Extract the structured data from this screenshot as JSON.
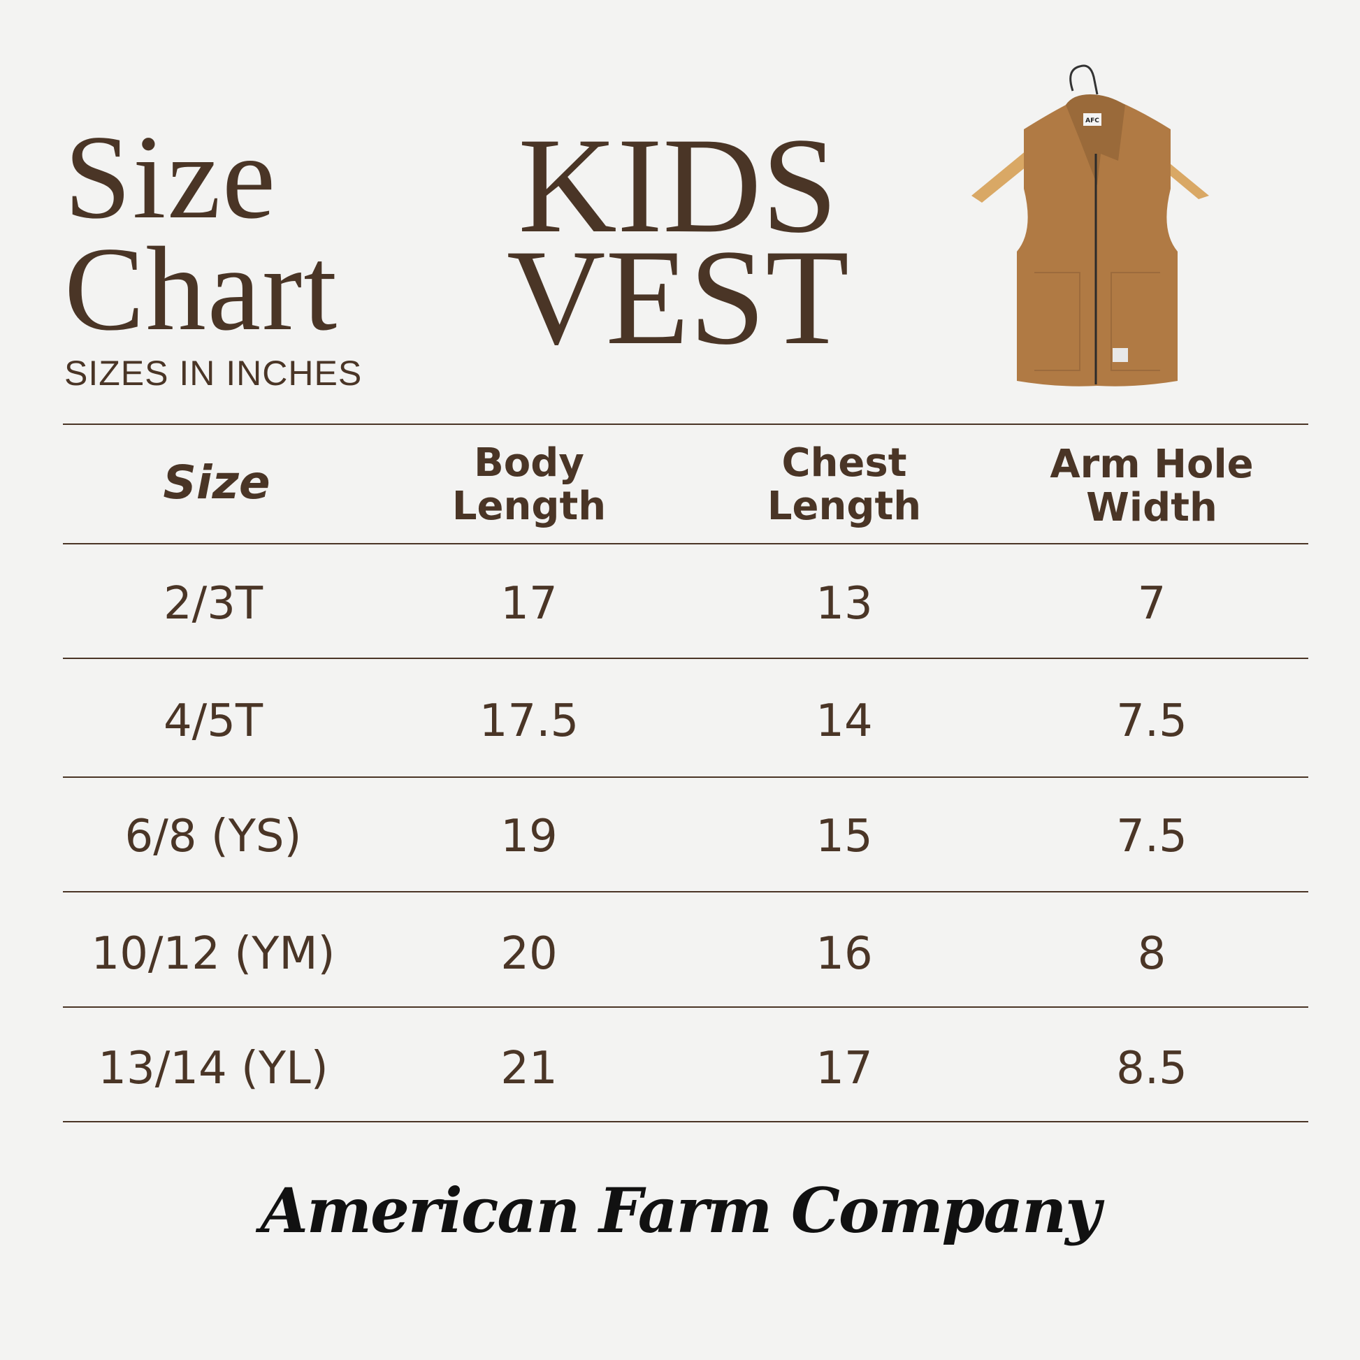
{
  "header": {
    "title_line1": "Size",
    "title_line2": "Chart",
    "subtitle": "SIZES IN INCHES",
    "product_line1": "KIDS",
    "product_line2": "VEST"
  },
  "product_image": {
    "icon": "vest-on-hanger",
    "label_tag": "AFC",
    "vest_color": "#b07a44"
  },
  "table": {
    "columns": [
      {
        "line1": "Size",
        "line2": ""
      },
      {
        "line1": "Body",
        "line2": "Length"
      },
      {
        "line1": "Chest",
        "line2": "Length"
      },
      {
        "line1": "Arm Hole",
        "line2": "Width"
      }
    ],
    "rows": [
      [
        "2/3T",
        "17",
        "13",
        "7"
      ],
      [
        "4/5T",
        "17.5",
        "14",
        "7.5"
      ],
      [
        "6/8 (YS)",
        "19",
        "15",
        "7.5"
      ],
      [
        "10/12 (YM)",
        "20",
        "16",
        "8"
      ],
      [
        "13/14 (YL)",
        "21",
        "17",
        "8.5"
      ]
    ]
  },
  "footer": {
    "brand": "American Farm Company"
  },
  "colors": {
    "text": "#4a3526",
    "background": "#f3f3f2"
  }
}
